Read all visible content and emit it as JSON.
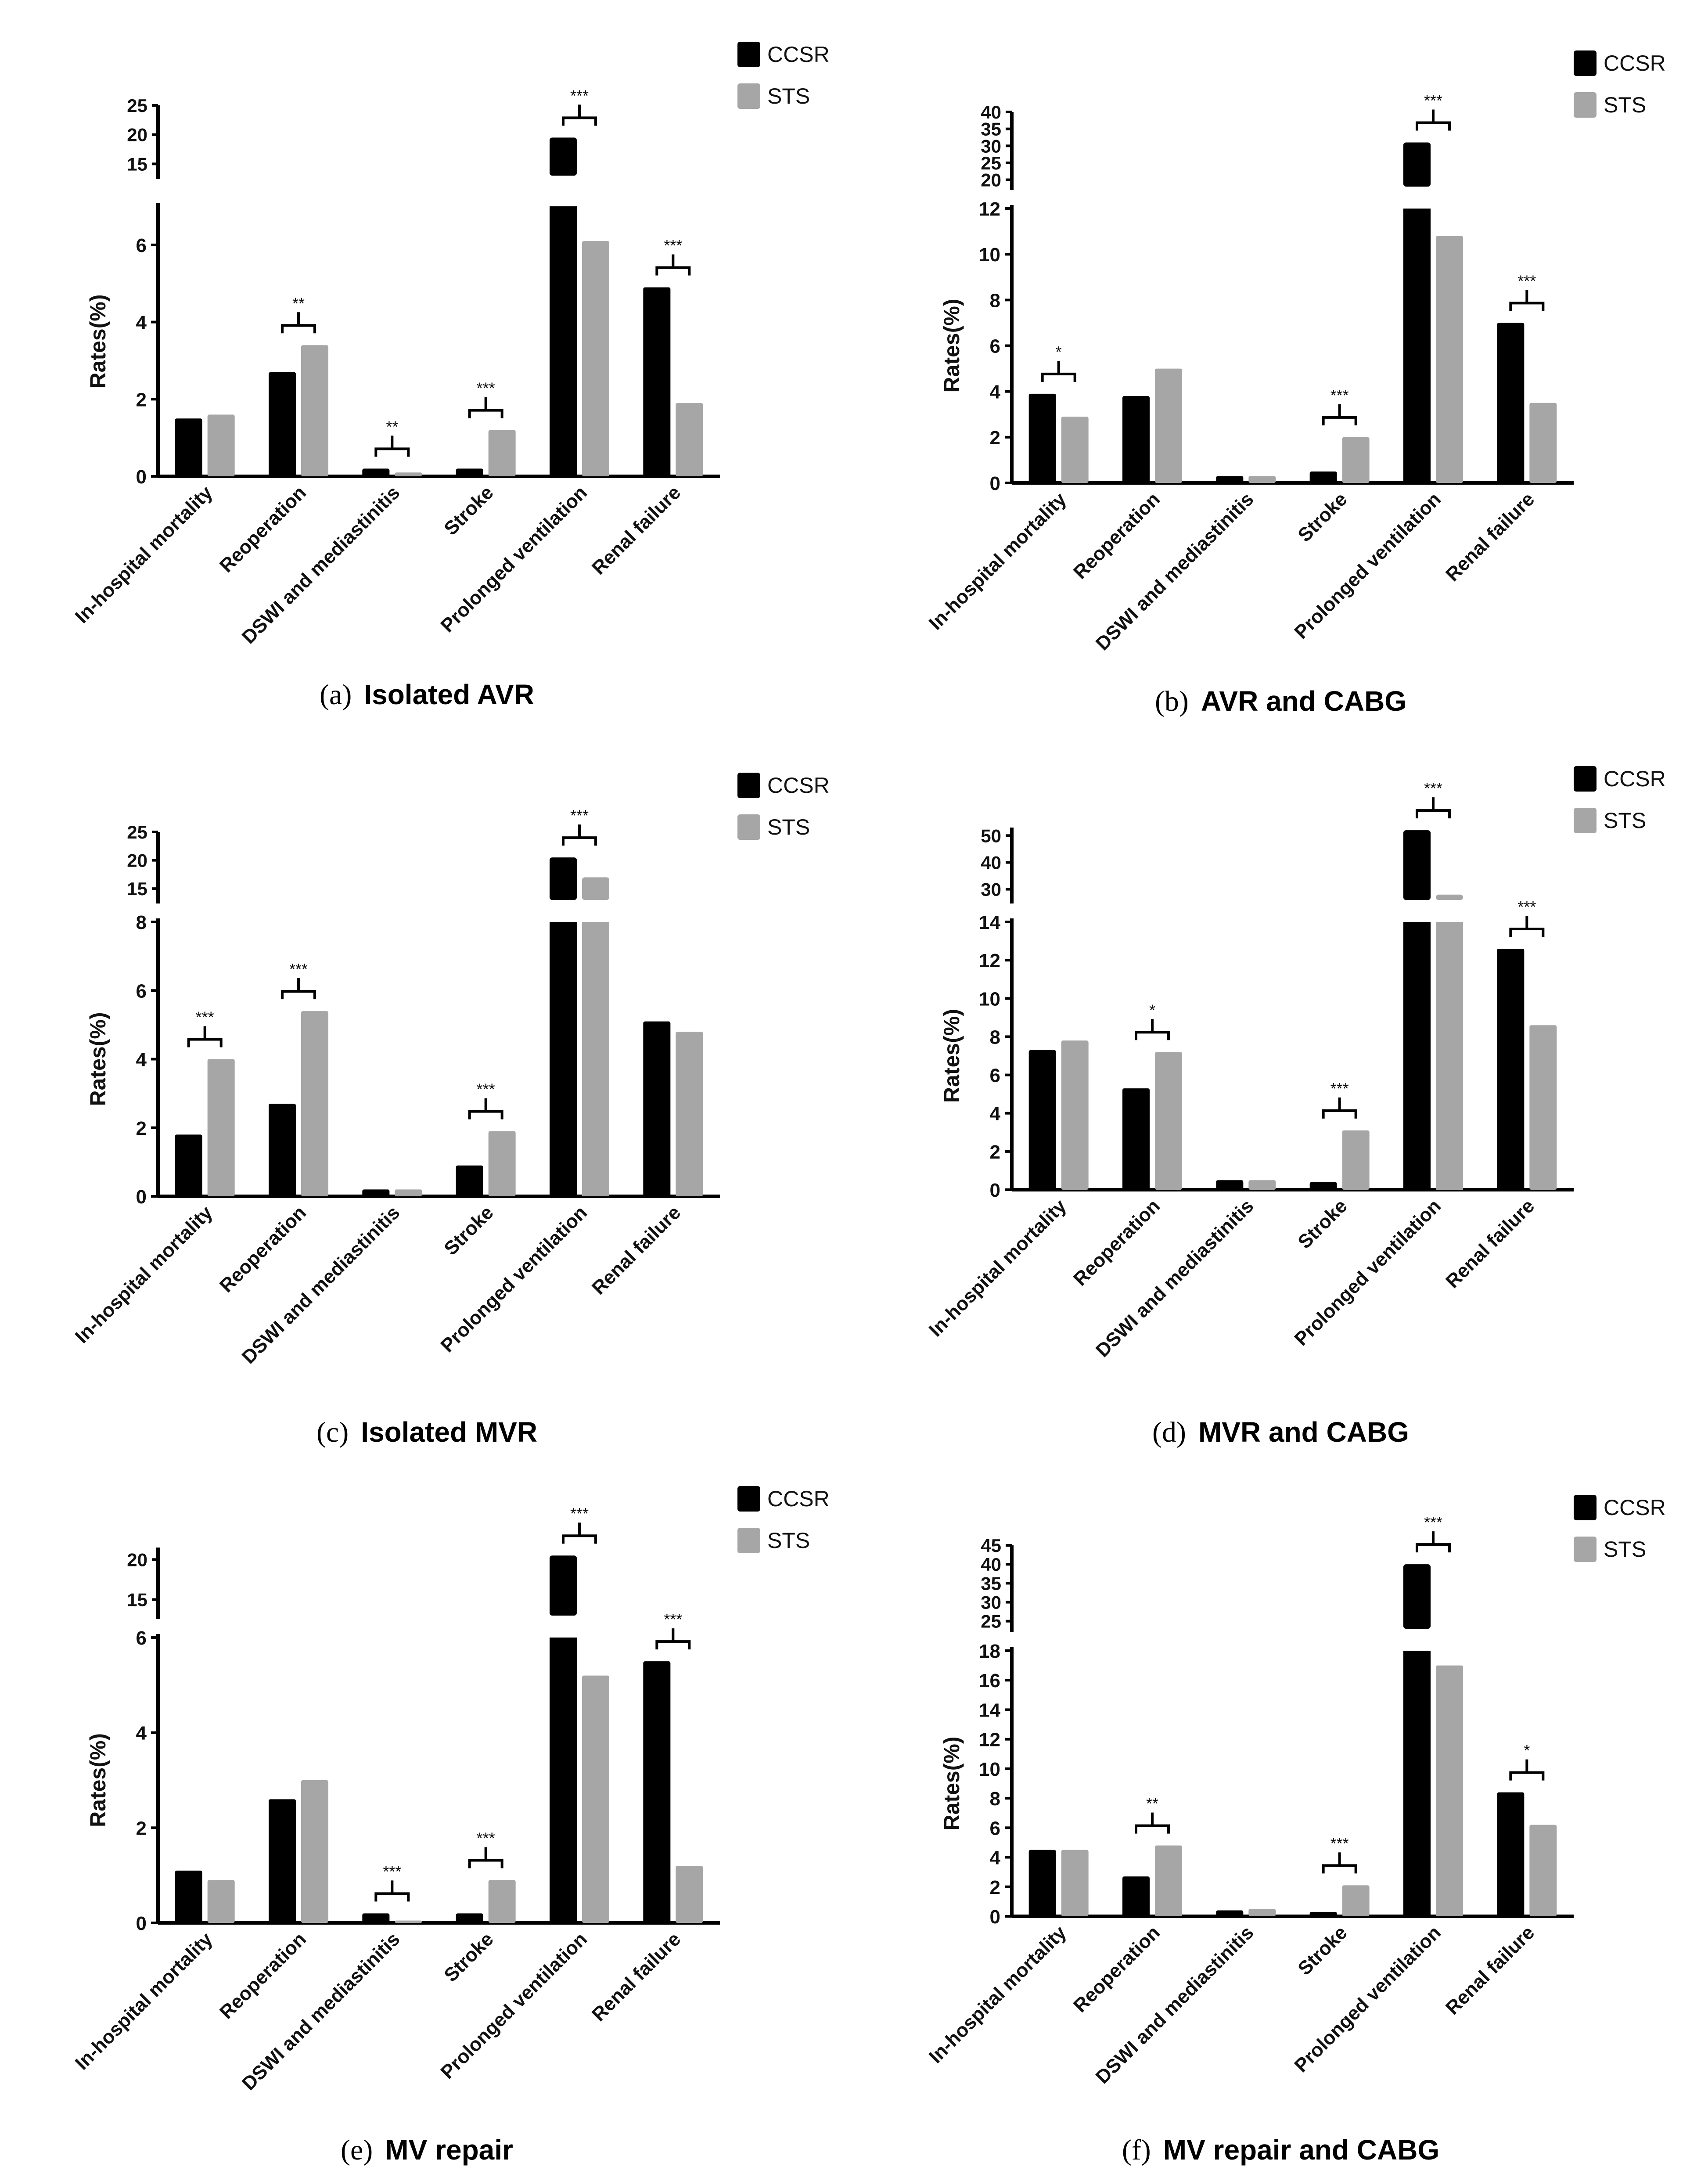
{
  "figure": {
    "legend": [
      {
        "label": "CCSR",
        "color": "#000000"
      },
      {
        "label": "STS",
        "color": "#a6a6a6"
      }
    ],
    "ylabel": "Rates(%)"
  },
  "chart_data": [
    {
      "type": "bar",
      "panel_label": "(a)",
      "title": "Isolated AVR",
      "ylabel": "Rates(%)",
      "categories": [
        "In-hospital mortality",
        "Reoperation",
        "DSWI and mediastinitis",
        "Stroke",
        "Prolonged ventilation",
        "Renal failure"
      ],
      "series": [
        {
          "name": "CCSR",
          "values": [
            1.5,
            2.7,
            0.2,
            0.2,
            19.5,
            4.9
          ]
        },
        {
          "name": "STS",
          "values": [
            1.6,
            3.4,
            0.1,
            1.2,
            6.1,
            1.9
          ]
        }
      ],
      "significance": [
        "",
        "**",
        "**",
        "***",
        "***",
        "***"
      ],
      "axis_break": {
        "lower": [
          0,
          7
        ],
        "upper": [
          13,
          25
        ]
      },
      "lower_ticks": [
        0,
        2,
        4,
        6
      ],
      "upper_ticks": [
        15,
        20,
        25
      ]
    },
    {
      "type": "bar",
      "panel_label": "(b)",
      "title": "AVR and CABG",
      "ylabel": "Rates(%)",
      "categories": [
        "In-hospital mortality",
        "Reoperation",
        "DSWI and mediastinitis",
        "Stroke",
        "Prolonged ventilation",
        "Renal failure"
      ],
      "series": [
        {
          "name": "CCSR",
          "values": [
            3.9,
            3.8,
            0.3,
            0.5,
            31,
            7.0
          ]
        },
        {
          "name": "STS",
          "values": [
            2.9,
            5.0,
            0.3,
            2.0,
            10.8,
            3.5
          ]
        }
      ],
      "significance": [
        "*",
        "",
        "",
        "***",
        "***",
        "***"
      ],
      "axis_break": {
        "lower": [
          0,
          12
        ],
        "upper": [
          18,
          40
        ]
      },
      "lower_ticks": [
        0,
        2,
        4,
        6,
        8,
        10,
        12
      ],
      "upper_ticks": [
        20,
        25,
        30,
        35,
        40
      ]
    },
    {
      "type": "bar",
      "panel_label": "(c)",
      "title": "Isolated MVR",
      "ylabel": "Rates(%)",
      "categories": [
        "In-hospital mortality",
        "Reoperation",
        "DSWI and mediastinitis",
        "Stroke",
        "Prolonged ventilation",
        "Renal failure"
      ],
      "series": [
        {
          "name": "CCSR",
          "values": [
            1.8,
            2.7,
            0.2,
            0.9,
            20.5,
            5.1
          ]
        },
        {
          "name": "STS",
          "values": [
            4.0,
            5.4,
            0.2,
            1.9,
            17,
            4.8
          ]
        }
      ],
      "significance": [
        "***",
        "***",
        "",
        "***",
        "***",
        ""
      ],
      "axis_break": {
        "lower": [
          0,
          8
        ],
        "upper": [
          13,
          25
        ]
      },
      "lower_ticks": [
        0,
        2,
        4,
        6,
        8
      ],
      "upper_ticks": [
        15,
        20,
        25
      ]
    },
    {
      "type": "bar",
      "panel_label": "(d)",
      "title": "MVR and CABG",
      "ylabel": "Rates(%)",
      "categories": [
        "In-hospital mortality",
        "Reoperation",
        "DSWI and mediastinitis",
        "Stroke",
        "Prolonged ventilation",
        "Renal failure"
      ],
      "series": [
        {
          "name": "CCSR",
          "values": [
            7.3,
            5.3,
            0.5,
            0.4,
            52,
            12.6
          ]
        },
        {
          "name": "STS",
          "values": [
            7.8,
            7.2,
            0.5,
            3.1,
            28,
            8.6
          ]
        }
      ],
      "significance": [
        "",
        "*",
        "",
        "***",
        "***",
        "***"
      ],
      "axis_break": {
        "lower": [
          0,
          14
        ],
        "upper": [
          26,
          53
        ]
      },
      "lower_ticks": [
        0,
        2,
        4,
        6,
        8,
        10,
        12,
        14
      ],
      "upper_ticks": [
        30,
        40,
        50
      ]
    },
    {
      "type": "bar",
      "panel_label": "(e)",
      "title": "MV repair",
      "ylabel": "Rates(%)",
      "categories": [
        "In-hospital mortality",
        "Reoperation",
        "DSWI and mediastinitis",
        "Stroke",
        "Prolonged ventilation",
        "Renal failure"
      ],
      "series": [
        {
          "name": "CCSR",
          "values": [
            1.1,
            2.6,
            0.2,
            0.2,
            20.5,
            5.5
          ]
        },
        {
          "name": "STS",
          "values": [
            0.9,
            3.0,
            0.05,
            0.9,
            5.2,
            1.2
          ]
        }
      ],
      "significance": [
        "",
        "",
        "***",
        "***",
        "***",
        "***"
      ],
      "axis_break": {
        "lower": [
          0,
          6
        ],
        "upper": [
          13,
          21.5
        ]
      },
      "lower_ticks": [
        0,
        2,
        4,
        6
      ],
      "upper_ticks": [
        15,
        20
      ]
    },
    {
      "type": "bar",
      "panel_label": "(f)",
      "title": "MV repair and CABG",
      "ylabel": "Rates(%)",
      "categories": [
        "In-hospital mortality",
        "Reoperation",
        "DSWI and mediastinitis",
        "Stroke",
        "Prolonged ventilation",
        "Renal failure"
      ],
      "series": [
        {
          "name": "CCSR",
          "values": [
            4.5,
            2.7,
            0.4,
            0.3,
            40,
            8.4
          ]
        },
        {
          "name": "STS",
          "values": [
            4.5,
            4.8,
            0.5,
            2.1,
            17,
            6.2
          ]
        }
      ],
      "significance": [
        "",
        "**",
        "",
        "***",
        "***",
        "*"
      ],
      "axis_break": {
        "lower": [
          0,
          18
        ],
        "upper": [
          23,
          45
        ]
      },
      "lower_ticks": [
        0,
        2,
        4,
        6,
        8,
        10,
        12,
        14,
        16,
        18
      ],
      "upper_ticks": [
        25,
        30,
        35,
        40,
        45
      ]
    }
  ]
}
